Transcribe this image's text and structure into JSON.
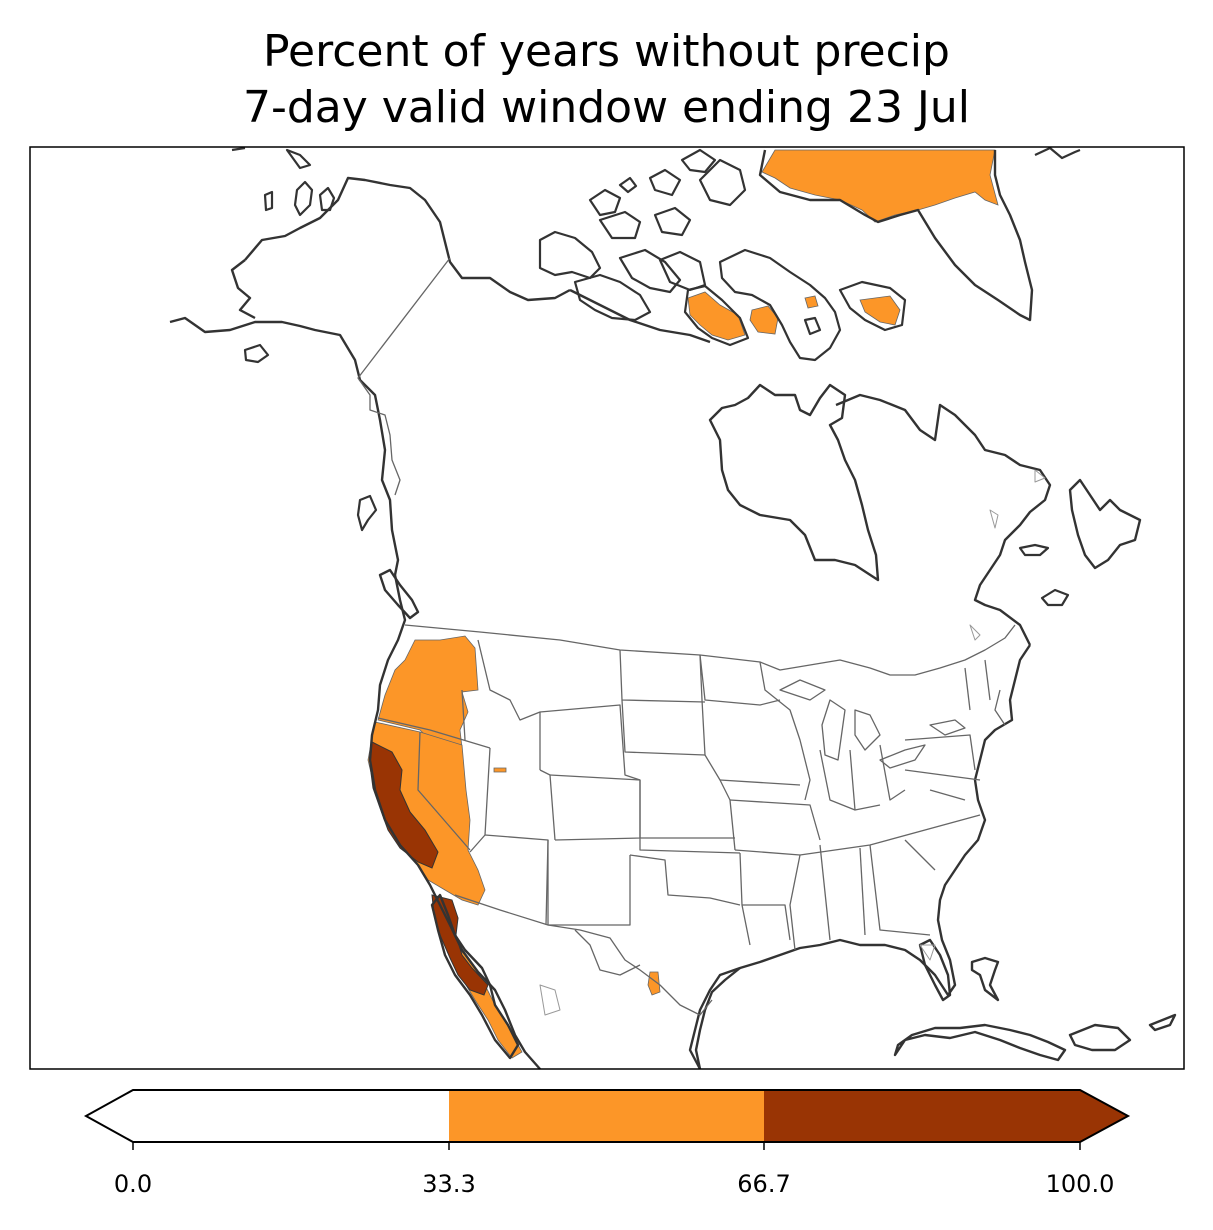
{
  "title": {
    "line1": "Percent of years without precip",
    "line2": "7-day valid window ending 23 Jul"
  },
  "colorbar": {
    "ticks": [
      "0.0",
      "33.3",
      "66.7",
      "100.0"
    ],
    "bins": [
      {
        "from": 0.0,
        "to": 33.3,
        "color": "#ffffff"
      },
      {
        "from": 33.3,
        "to": 66.7,
        "color": "#fc9628"
      },
      {
        "from": 66.7,
        "to": 100.0,
        "color": "#993404"
      }
    ],
    "extend": "both"
  },
  "colors": {
    "low": "#ffffff",
    "mid": "#fc9628",
    "high": "#993404",
    "coast": "#333333",
    "border": "#666666"
  }
}
